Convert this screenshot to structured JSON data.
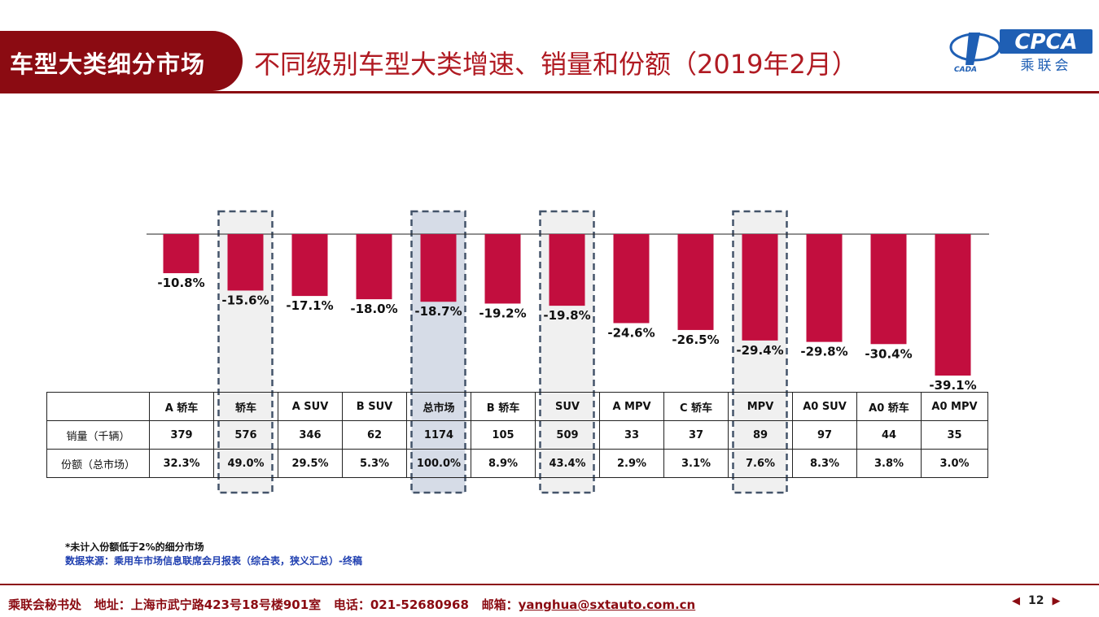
{
  "header": {
    "section": "车型大类细分市场",
    "title": "不同级别车型大类增速、销量和份额（2019年2月）"
  },
  "logo": {
    "text": "CPCA",
    "subtitle": "乘联会",
    "mark_text": "CADA"
  },
  "chart_data": {
    "type": "bar",
    "categories": [
      "A 轿车",
      "轿车",
      "A SUV",
      "B SUV",
      "总市场",
      "B 轿车",
      "SUV",
      "A MPV",
      "C 轿车",
      "MPV",
      "A0 SUV",
      "A0 轿车",
      "A0 MPV"
    ],
    "values": [
      -10.8,
      -15.6,
      -17.1,
      -18.0,
      -18.7,
      -19.2,
      -19.8,
      -24.6,
      -26.5,
      -29.4,
      -29.8,
      -30.4,
      -39.1
    ],
    "value_labels": [
      "-10.8%",
      "-15.6%",
      "-17.1%",
      "-18.0%",
      "-18.7%",
      "-19.2%",
      "-19.8%",
      "-24.6%",
      "-26.5%",
      "-29.4%",
      "-29.8%",
      "-30.4%",
      "-39.1%"
    ],
    "ylim": [
      -40,
      0
    ],
    "bar_color": "#c20e3e",
    "highlight_categories": [
      "轿车",
      "总市场",
      "SUV",
      "MPV"
    ],
    "strong_highlight": "总市场",
    "grid": false
  },
  "table": {
    "row_labels": [
      "销量（千辆）",
      "份额（总市场）"
    ],
    "sales": [
      "379",
      "576",
      "346",
      "62",
      "1174",
      "105",
      "509",
      "33",
      "37",
      "89",
      "97",
      "44",
      "35"
    ],
    "share": [
      "32.3%",
      "49.0%",
      "29.5%",
      "5.3%",
      "100.0%",
      "8.9%",
      "43.4%",
      "2.9%",
      "3.1%",
      "7.6%",
      "8.3%",
      "3.8%",
      "3.0%"
    ]
  },
  "note": "*未计入份额低于2%的细分市场",
  "source": "数据来源：乘用车市场信息联席会月报表（综合表，狭义汇总）-终稿",
  "footer": {
    "org": "乘联会秘书处",
    "address": "地址：上海市武宁路423号18号楼901室",
    "phone": "电话：021-52680968",
    "email_label": "邮箱：",
    "email": "yanghua@sxtauto.com.cn"
  },
  "pager": {
    "page": "12",
    "prev_icon": "◀",
    "next_icon": "▶"
  },
  "colors": {
    "brand": "#8b0b12",
    "title": "#b01a22",
    "source": "#1f3fb0"
  }
}
